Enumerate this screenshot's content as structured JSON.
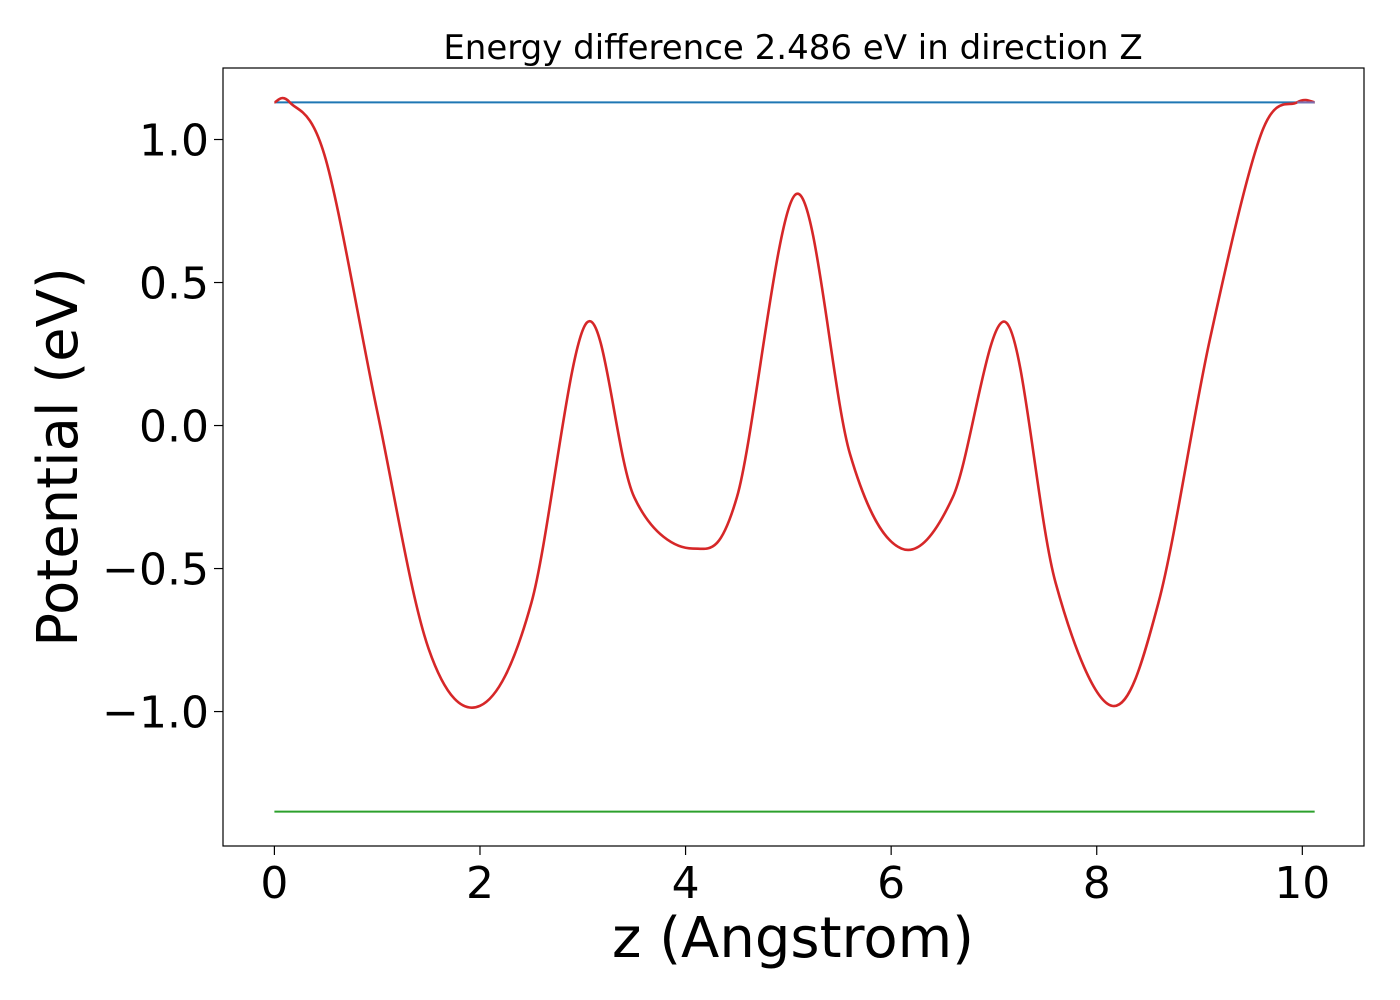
{
  "chart_data": {
    "type": "line",
    "title": "Energy difference 2.486 eV in direction Z",
    "xlabel": "z (Angstrom)",
    "ylabel": "Potential (eV)",
    "xlim": [
      -0.5,
      10.6
    ],
    "ylim": [
      -1.47,
      1.25
    ],
    "xticks": [
      0,
      2,
      4,
      6,
      8,
      10
    ],
    "xtick_labels": [
      "0",
      "2",
      "4",
      "6",
      "8",
      "10"
    ],
    "yticks": [
      1.0,
      0.5,
      0.0,
      -0.5,
      -1.0
    ],
    "ytick_labels": [
      "1.0",
      "0.5",
      "0.0",
      "−0.5",
      "−1.0"
    ],
    "grid": false,
    "series": [
      {
        "color": "#1f77b4",
        "x": [
          0,
          10.12
        ],
        "y": [
          1.13,
          1.13
        ]
      },
      {
        "color": "#2ca02c",
        "x": [
          0,
          10.12
        ],
        "y": [
          -1.35,
          -1.35
        ]
      },
      {
        "color": "#d62728",
        "x": [
          0,
          0.15,
          0.5,
          1.0,
          1.5,
          2.0,
          2.5,
          3.04,
          3.5,
          4.07,
          4.5,
          5.08,
          5.6,
          6.1,
          6.6,
          7.12,
          7.6,
          8.15,
          8.6,
          9.1,
          9.6,
          9.95,
          10.12
        ],
        "y": [
          1.13,
          1.13,
          0.93,
          0.05,
          -0.78,
          -0.98,
          -0.62,
          0.36,
          -0.25,
          -0.43,
          -0.25,
          0.81,
          -0.1,
          -0.43,
          -0.25,
          0.36,
          -0.55,
          -0.98,
          -0.62,
          0.3,
          1.02,
          1.13,
          1.13
        ]
      },
      {
        "color": "#7b6fb0",
        "x": [
          9.95,
          10.12
        ],
        "y": [
          1.13,
          1.13
        ]
      }
    ]
  }
}
